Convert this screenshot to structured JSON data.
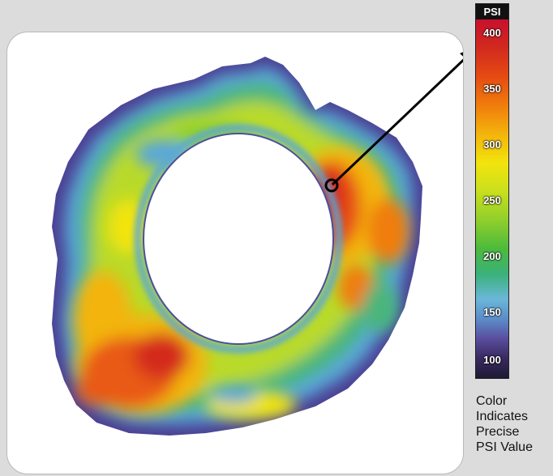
{
  "scale": {
    "unit_label": "PSI",
    "ticks": [
      "400",
      "350",
      "300",
      "250",
      "200",
      "150",
      "100"
    ]
  },
  "caption": {
    "lines": [
      "Color",
      "Indicates",
      "Precise",
      "PSI Value"
    ]
  },
  "colors": {
    "background": "#dcdcdc",
    "panel": "#ffffff",
    "arrow": "#000000",
    "max_pressure": "#d42a1a",
    "min_pressure": "#3b2c65"
  }
}
